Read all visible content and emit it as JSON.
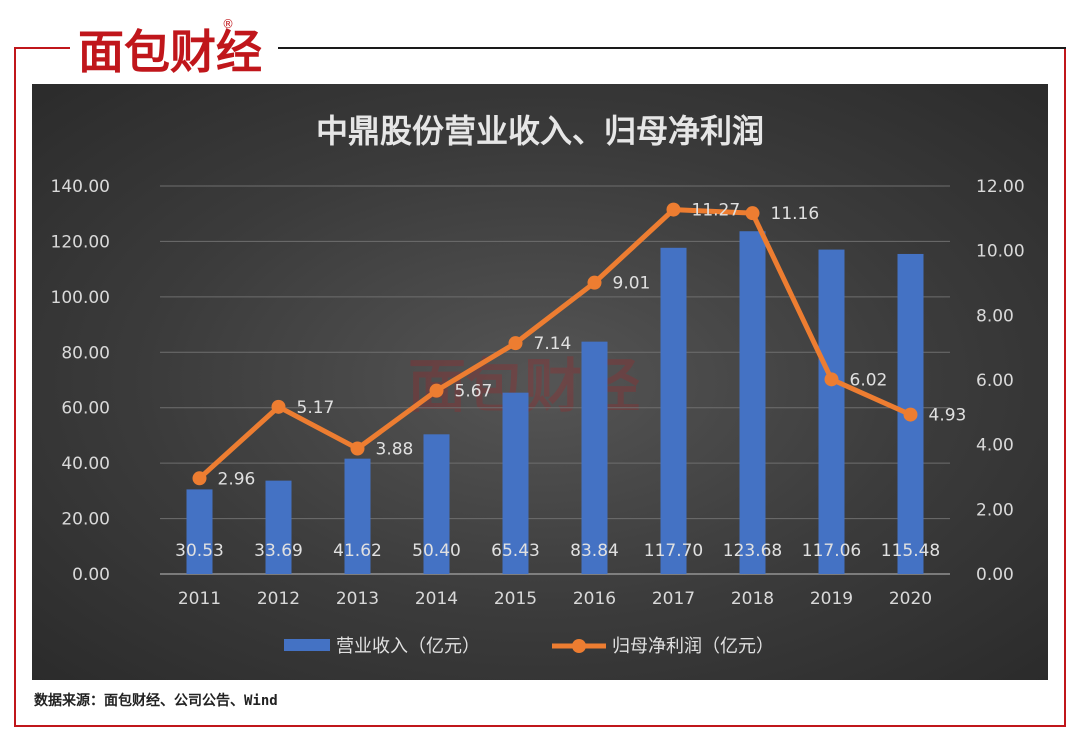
{
  "brand": {
    "name": "面包财经",
    "mark": "®"
  },
  "source_note": "数据来源：面包财经、公司公告、Wind",
  "chart_data": {
    "type": "bar",
    "title": "中鼎股份营业收入、归母净利润",
    "categories": [
      "2011",
      "2012",
      "2013",
      "2014",
      "2015",
      "2016",
      "2017",
      "2018",
      "2019",
      "2020"
    ],
    "series": [
      {
        "name": "营业收入（亿元）",
        "type": "bar",
        "axis": "left",
        "color": "#4472c4",
        "values": [
          30.53,
          33.69,
          41.62,
          50.4,
          65.43,
          83.84,
          117.7,
          123.68,
          117.06,
          115.48
        ],
        "labels": [
          "30.53",
          "33.69",
          "41.62",
          "50.40",
          "65.43",
          "83.84",
          "117.70",
          "123.68",
          "117.06",
          "115.48"
        ]
      },
      {
        "name": "归母净利润（亿元）",
        "type": "line",
        "axis": "right",
        "color": "#ed7d31",
        "values": [
          2.96,
          5.17,
          3.88,
          5.67,
          7.14,
          9.01,
          11.27,
          11.16,
          6.02,
          4.93
        ],
        "labels": [
          "2.96",
          "5.17",
          "3.88",
          "5.67",
          "7.14",
          "9.01",
          "11.27",
          "11.16",
          "6.02",
          "4.93"
        ]
      }
    ],
    "y_left": {
      "min": 0,
      "max": 140,
      "ticks": [
        "0.00",
        "20.00",
        "40.00",
        "60.00",
        "80.00",
        "100.00",
        "120.00",
        "140.00"
      ]
    },
    "y_right": {
      "min": 0,
      "max": 12,
      "ticks": [
        "0.00",
        "2.00",
        "4.00",
        "6.00",
        "8.00",
        "10.00",
        "12.00"
      ]
    },
    "grid": true,
    "legend_position": "bottom"
  }
}
